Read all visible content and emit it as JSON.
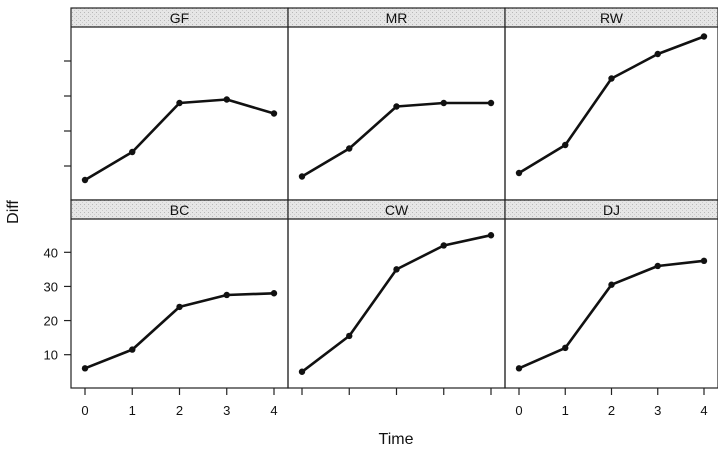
{
  "chart_data": {
    "type": "line",
    "xlabel": "Time",
    "ylabel": "Diff",
    "xlim": [
      0,
      4
    ],
    "ylim": [
      2,
      48
    ],
    "x_ticks": [
      0,
      1,
      2,
      3,
      4
    ],
    "y_ticks": [
      10,
      20,
      30,
      40
    ],
    "grid": false,
    "legend": "none",
    "layout": "lattice panels, 2 rows x 3 columns",
    "line_color": "#111111",
    "strip_color": "#e6e6e6",
    "panels": [
      {
        "name": "GF",
        "x": [
          0,
          1,
          2,
          3,
          4
        ],
        "y": [
          6,
          14,
          28,
          29,
          25
        ]
      },
      {
        "name": "MR",
        "x": [
          0,
          1,
          2,
          3,
          4
        ],
        "y": [
          7,
          15,
          27,
          28,
          28
        ]
      },
      {
        "name": "RW",
        "x": [
          0,
          1,
          2,
          3,
          4
        ],
        "y": [
          8,
          16,
          35,
          42,
          47
        ]
      },
      {
        "name": "BC",
        "x": [
          0,
          1,
          2,
          3,
          4
        ],
        "y": [
          6,
          11.5,
          24,
          27.5,
          28
        ]
      },
      {
        "name": "CW",
        "x": [
          0,
          1,
          2,
          3,
          4
        ],
        "y": [
          5,
          15.5,
          35,
          42,
          45
        ]
      },
      {
        "name": "DJ",
        "x": [
          0,
          1,
          2,
          3,
          4
        ],
        "y": [
          6,
          12,
          30.5,
          36,
          37.5
        ]
      }
    ]
  }
}
